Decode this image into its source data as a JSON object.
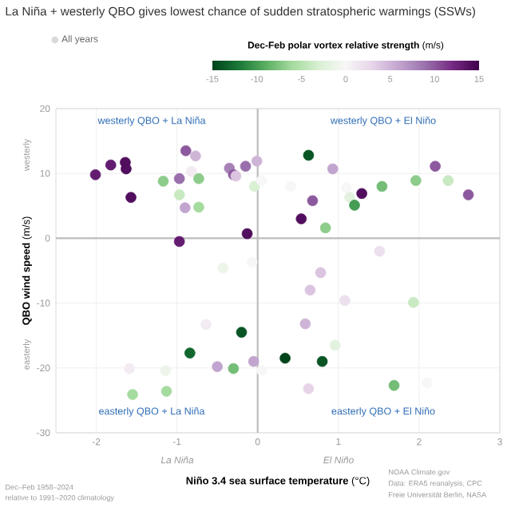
{
  "chart_data": {
    "type": "scatter",
    "title": "La Niña + westerly QBO gives lowest chance of sudden stratospheric warmings (SSWs)",
    "xlabel": "**Niño 3.4 sea surface temperature** (°C)",
    "ylabel": "**QBO wind speed** (m/s)",
    "clabel": "**Dec-Feb polar vortex relative strength** (m/s)",
    "clim": [
      -15,
      15
    ],
    "cticks": [
      -15,
      -10,
      -5,
      0,
      5,
      10,
      15
    ],
    "xlim": [
      -2.5,
      3
    ],
    "xticks": [
      -2,
      -1,
      0,
      1,
      2,
      3
    ],
    "ylim": [
      -30,
      20
    ],
    "yticks": [
      -30,
      -20,
      -10,
      0,
      10,
      20
    ],
    "grid": true,
    "legend": "top left",
    "marker": "circle",
    "annotations": [
      "westerly QBO + La Niña",
      "westerly QBO + El Niño",
      "easterly QBO + La Niña",
      "easterly QBO + El Niño",
      "westerly",
      "easterly",
      "La Niña",
      "El Niño",
      "Dec–Feb 1958–2024",
      "relative to 1991–2020 climatology",
      "NOAA Climate.gov",
      "Data: ERA5 reanalysis, CPC",
      "Freie Universität Berlin, NASA"
    ],
    "series": [
      {
        "name": "All years",
        "x": [
          -2.01,
          -1.82,
          -1.64,
          -1.63,
          -1.57,
          -1.17,
          -0.97,
          -0.89,
          -0.77,
          -0.97,
          -0.82,
          -0.73,
          -0.9,
          -0.73,
          -0.97,
          -0.35,
          -0.3,
          -0.27,
          -0.15,
          -0.01,
          -0.04,
          0.05,
          -0.13,
          -0.43,
          -0.07,
          -0.64,
          -0.2,
          0.63,
          0.93,
          0.41,
          0.68,
          0.54,
          0.84,
          1.1,
          1.14,
          1.2,
          1.29,
          1.54,
          1.96,
          2.2,
          2.36,
          2.61,
          1.51,
          0.78,
          0.65,
          1.08,
          1.93,
          0.59,
          -0.84,
          -1.59,
          -1.14,
          -1.55,
          -1.13,
          -0.5,
          -0.3,
          -0.05,
          0.05,
          0.96,
          0.34,
          0.8,
          0.63,
          1.69,
          2.1
        ],
        "values": [
          9.8,
          11.3,
          11.7,
          10.7,
          6.3,
          8.8,
          9.2,
          13.5,
          12.7,
          6.7,
          10.3,
          9.2,
          4.7,
          4.8,
          -0.5,
          10.8,
          9.8,
          9.6,
          11.1,
          11.9,
          8.0,
          8.9,
          0.7,
          -4.6,
          -3.7,
          -13.3,
          -14.5,
          12.8,
          10.7,
          8.0,
          5.8,
          3.0,
          1.6,
          7.8,
          6.3,
          5.1,
          6.9,
          8.0,
          8.9,
          11.1,
          8.9,
          6.7,
          -2.0,
          -5.3,
          -8.0,
          -9.6,
          -9.9,
          -13.2,
          -17.7,
          -20.1,
          -20.4,
          -24.1,
          -23.6,
          -19.8,
          -20.1,
          -19.0,
          -20.4,
          -16.5,
          -18.5,
          -19.0,
          -23.2,
          -22.7,
          -22.3
        ],
        "cvalues": [
          13,
          13,
          14,
          14,
          14,
          -7,
          9,
          10,
          5,
          -4,
          1,
          -7,
          6,
          -6,
          13,
          8,
          10,
          4,
          9,
          5,
          -3,
          0,
          14,
          -1,
          0,
          1,
          -14,
          -14,
          6,
          0,
          10,
          14,
          -7,
          0,
          -2,
          -10,
          14,
          -8,
          -7,
          10,
          -4,
          10,
          2,
          4,
          4,
          2,
          -4,
          5,
          -13,
          1,
          -1,
          -6,
          -6,
          6,
          -8,
          6,
          0,
          -2,
          -15,
          -14,
          3,
          -8,
          0
        ]
      }
    ]
  }
}
